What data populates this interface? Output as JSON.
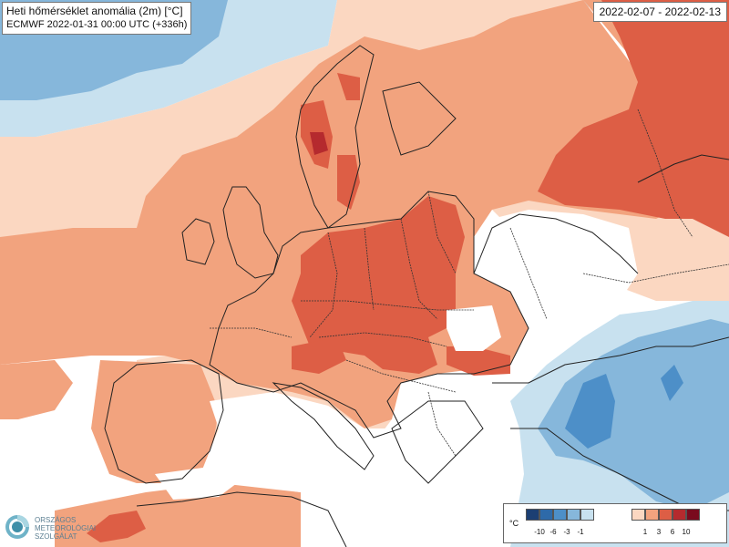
{
  "header": {
    "title": "Heti hőmérséklet anomália (2m) [°C]",
    "model_run": "ECMWF 2022-01-31 00:00 UTC  (+336h)",
    "valid_period": "2022-02-07 - 2022-02-13"
  },
  "logo": {
    "icon": "omsz-swirl-logo",
    "lines": [
      "ORSZÁGOS",
      "METEOROLÓGIAI",
      "SZOLGÁLAT"
    ]
  },
  "legend": {
    "unit": "°C",
    "cold": {
      "colors": [
        "#1c3f73",
        "#2e6aa9",
        "#4d8fc8",
        "#86b7db",
        "#c8e1ef"
      ],
      "labels": [
        "-10",
        "-6",
        "-3",
        "-1"
      ]
    },
    "warm": {
      "colors": [
        "#fbd7c1",
        "#f2a37e",
        "#dd5e45",
        "#b52a2e",
        "#7a0a1e"
      ],
      "labels": [
        "1",
        "3",
        "6",
        "10"
      ]
    }
  }
}
